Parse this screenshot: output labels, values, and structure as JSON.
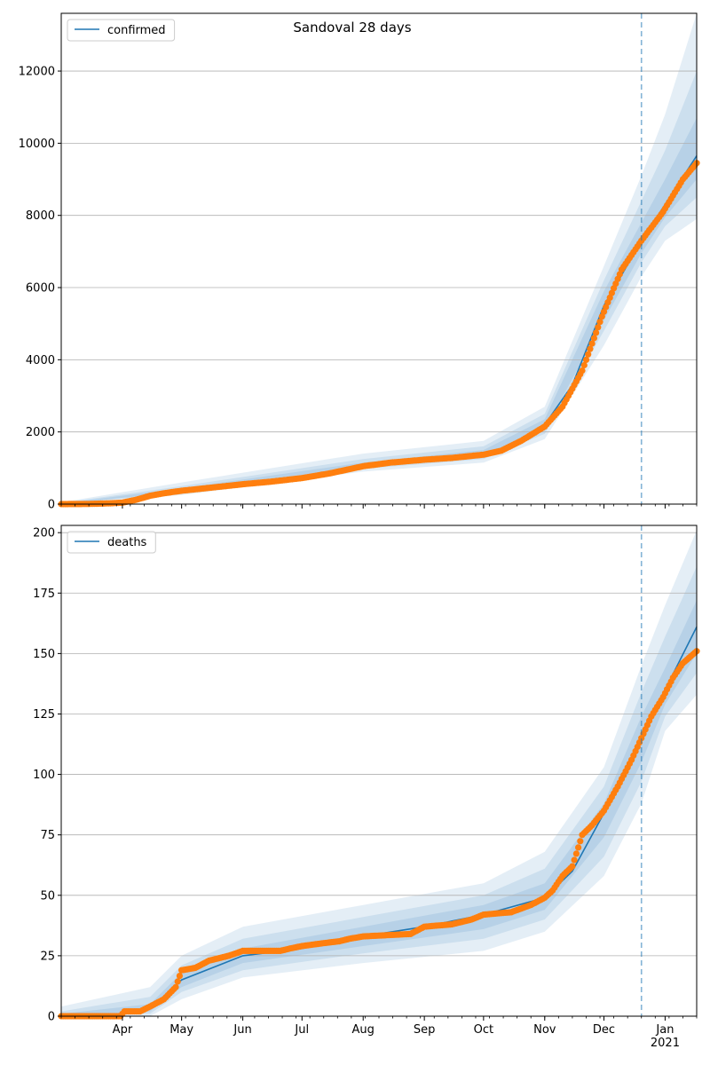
{
  "figure": {
    "title": "Sandoval 28 days"
  },
  "chart_data": [
    {
      "type": "line",
      "legend": {
        "label": "confirmed",
        "placement": "top-left"
      },
      "x_unit": "date",
      "x_range": [
        "2020-03-01",
        "2021-01-17"
      ],
      "ylim": [
        0,
        13600
      ],
      "yticks": [
        0,
        2000,
        4000,
        6000,
        8000,
        10000,
        12000
      ],
      "grid": "y",
      "vline_date": "2020-12-20",
      "colors": {
        "fit": "#1f77b4",
        "observed": "#ff7f0e",
        "band": "#1f77b4"
      },
      "observed": [
        [
          "2020-03-01",
          0
        ],
        [
          "2020-03-15",
          5
        ],
        [
          "2020-03-25",
          20
        ],
        [
          "2020-04-01",
          40
        ],
        [
          "2020-04-08",
          120
        ],
        [
          "2020-04-15",
          230
        ],
        [
          "2020-04-22",
          300
        ],
        [
          "2020-05-01",
          370
        ],
        [
          "2020-05-15",
          450
        ],
        [
          "2020-06-01",
          550
        ],
        [
          "2020-06-15",
          620
        ],
        [
          "2020-07-01",
          720
        ],
        [
          "2020-07-15",
          850
        ],
        [
          "2020-08-01",
          1050
        ],
        [
          "2020-08-15",
          1150
        ],
        [
          "2020-09-01",
          1230
        ],
        [
          "2020-09-15",
          1280
        ],
        [
          "2020-10-01",
          1370
        ],
        [
          "2020-10-10",
          1480
        ],
        [
          "2020-10-20",
          1750
        ],
        [
          "2020-11-01",
          2150
        ],
        [
          "2020-11-10",
          2700
        ],
        [
          "2020-11-20",
          3700
        ],
        [
          "2020-11-30",
          5200
        ],
        [
          "2020-12-10",
          6500
        ],
        [
          "2020-12-20",
          7300
        ],
        [
          "2020-12-31",
          8100
        ],
        [
          "2021-01-10",
          9000
        ],
        [
          "2021-01-17",
          9450
        ]
      ],
      "fit": [
        [
          "2020-03-01",
          0
        ],
        [
          "2020-04-01",
          40
        ],
        [
          "2020-05-01",
          380
        ],
        [
          "2020-06-01",
          560
        ],
        [
          "2020-07-01",
          730
        ],
        [
          "2020-08-01",
          1060
        ],
        [
          "2020-09-01",
          1240
        ],
        [
          "2020-10-01",
          1380
        ],
        [
          "2020-10-15",
          1600
        ],
        [
          "2020-11-01",
          2200
        ],
        [
          "2020-11-15",
          3300
        ],
        [
          "2020-12-01",
          5500
        ],
        [
          "2020-12-20",
          7300
        ],
        [
          "2021-01-01",
          8300
        ],
        [
          "2021-01-17",
          9650
        ]
      ],
      "bands": [
        {
          "lower": [
            [
              "2020-03-01",
              0
            ],
            [
              "2020-05-01",
              250
            ],
            [
              "2020-08-01",
              900
            ],
            [
              "2020-10-01",
              1150
            ],
            [
              "2020-11-01",
              1800
            ],
            [
              "2020-12-01",
              4400
            ],
            [
              "2020-12-20",
              6300
            ],
            [
              "2021-01-01",
              7300
            ],
            [
              "2021-01-17",
              7900
            ]
          ],
          "upper": [
            [
              "2020-03-01",
              50
            ],
            [
              "2020-05-01",
              600
            ],
            [
              "2020-08-01",
              1400
            ],
            [
              "2020-10-01",
              1750
            ],
            [
              "2020-11-01",
              2700
            ],
            [
              "2020-12-01",
              6600
            ],
            [
              "2020-12-20",
              9100
            ],
            [
              "2021-01-01",
              10800
            ],
            [
              "2021-01-17",
              13600
            ]
          ]
        },
        {
          "lower": [
            [
              "2020-03-01",
              0
            ],
            [
              "2020-05-01",
              300
            ],
            [
              "2020-08-01",
              980
            ],
            [
              "2020-10-01",
              1250
            ],
            [
              "2020-11-01",
              1950
            ],
            [
              "2020-12-01",
              4800
            ],
            [
              "2020-12-20",
              6700
            ],
            [
              "2021-01-01",
              7700
            ],
            [
              "2021-01-17",
              8500
            ]
          ],
          "upper": [
            [
              "2020-03-01",
              30
            ],
            [
              "2020-05-01",
              500
            ],
            [
              "2020-08-01",
              1250
            ],
            [
              "2020-10-01",
              1600
            ],
            [
              "2020-11-01",
              2500
            ],
            [
              "2020-12-01",
              6200
            ],
            [
              "2020-12-20",
              8400
            ],
            [
              "2021-01-01",
              9800
            ],
            [
              "2021-01-17",
              12000
            ]
          ]
        },
        {
          "lower": [
            [
              "2020-03-01",
              0
            ],
            [
              "2020-05-01",
              340
            ],
            [
              "2020-08-01",
              1020
            ],
            [
              "2020-10-01",
              1310
            ],
            [
              "2020-11-01",
              2050
            ],
            [
              "2020-12-01",
              5100
            ],
            [
              "2020-12-20",
              6950
            ],
            [
              "2021-01-01",
              7950
            ],
            [
              "2021-01-17",
              9000
            ]
          ],
          "upper": [
            [
              "2020-03-01",
              15
            ],
            [
              "2020-05-01",
              440
            ],
            [
              "2020-08-01",
              1150
            ],
            [
              "2020-10-01",
              1500
            ],
            [
              "2020-11-01",
              2350
            ],
            [
              "2020-12-01",
              5900
            ],
            [
              "2020-12-20",
              7800
            ],
            [
              "2021-01-01",
              9000
            ],
            [
              "2021-01-17",
              10700
            ]
          ]
        }
      ]
    },
    {
      "type": "line",
      "legend": {
        "label": "deaths",
        "placement": "top-left"
      },
      "x_unit": "date",
      "x_range": [
        "2020-03-01",
        "2021-01-17"
      ],
      "ylim": [
        0,
        203
      ],
      "yticks": [
        0,
        25,
        50,
        75,
        100,
        125,
        150,
        175,
        200
      ],
      "grid": "y",
      "vline_date": "2020-12-20",
      "colors": {
        "fit": "#1f77b4",
        "observed": "#ff7f0e",
        "band": "#1f77b4"
      },
      "observed": [
        [
          "2020-03-01",
          0
        ],
        [
          "2020-03-31",
          0
        ],
        [
          "2020-04-02",
          2
        ],
        [
          "2020-04-10",
          2
        ],
        [
          "2020-04-15",
          4
        ],
        [
          "2020-04-22",
          7
        ],
        [
          "2020-04-28",
          12
        ],
        [
          "2020-05-01",
          19
        ],
        [
          "2020-05-08",
          20
        ],
        [
          "2020-05-15",
          23
        ],
        [
          "2020-05-25",
          25
        ],
        [
          "2020-06-01",
          27
        ],
        [
          "2020-06-20",
          27
        ],
        [
          "2020-06-25",
          28
        ],
        [
          "2020-07-01",
          29
        ],
        [
          "2020-07-10",
          30
        ],
        [
          "2020-07-20",
          31
        ],
        [
          "2020-07-25",
          32
        ],
        [
          "2020-08-01",
          33
        ],
        [
          "2020-08-25",
          34
        ],
        [
          "2020-09-01",
          37
        ],
        [
          "2020-09-15",
          38
        ],
        [
          "2020-09-25",
          40
        ],
        [
          "2020-10-01",
          42
        ],
        [
          "2020-10-15",
          43
        ],
        [
          "2020-10-25",
          46
        ],
        [
          "2020-11-01",
          49
        ],
        [
          "2020-11-05",
          52
        ],
        [
          "2020-11-10",
          58
        ],
        [
          "2020-11-15",
          62
        ],
        [
          "2020-11-20",
          75
        ],
        [
          "2020-11-25",
          79
        ],
        [
          "2020-12-01",
          85
        ],
        [
          "2020-12-08",
          95
        ],
        [
          "2020-12-15",
          106
        ],
        [
          "2020-12-20",
          115
        ],
        [
          "2020-12-25",
          124
        ],
        [
          "2020-12-31",
          132
        ],
        [
          "2021-01-05",
          140
        ],
        [
          "2021-01-10",
          146
        ],
        [
          "2021-01-17",
          151
        ]
      ],
      "fit": [
        [
          "2020-03-01",
          0
        ],
        [
          "2020-04-01",
          1
        ],
        [
          "2020-04-15",
          3
        ],
        [
          "2020-05-01",
          15
        ],
        [
          "2020-06-01",
          25
        ],
        [
          "2020-07-01",
          28
        ],
        [
          "2020-08-01",
          33
        ],
        [
          "2020-09-01",
          37
        ],
        [
          "2020-10-01",
          42
        ],
        [
          "2020-11-01",
          49
        ],
        [
          "2020-11-15",
          60
        ],
        [
          "2020-12-01",
          84
        ],
        [
          "2020-12-20",
          115
        ],
        [
          "2021-01-01",
          135
        ],
        [
          "2021-01-17",
          161
        ]
      ],
      "bands": [
        {
          "lower": [
            [
              "2020-03-01",
              0
            ],
            [
              "2020-04-15",
              0
            ],
            [
              "2020-05-01",
              7
            ],
            [
              "2020-06-01",
              16
            ],
            [
              "2020-08-01",
              22
            ],
            [
              "2020-10-01",
              27
            ],
            [
              "2020-11-01",
              35
            ],
            [
              "2020-12-01",
              58
            ],
            [
              "2020-12-20",
              88
            ],
            [
              "2021-01-01",
              118
            ],
            [
              "2021-01-17",
              133
            ]
          ],
          "upper": [
            [
              "2020-03-01",
              4
            ],
            [
              "2020-04-15",
              12
            ],
            [
              "2020-05-01",
              25
            ],
            [
              "2020-06-01",
              37
            ],
            [
              "2020-08-01",
              46
            ],
            [
              "2020-10-01",
              55
            ],
            [
              "2020-11-01",
              68
            ],
            [
              "2020-12-01",
              103
            ],
            [
              "2020-12-20",
              145
            ],
            [
              "2021-01-01",
              170
            ],
            [
              "2021-01-17",
              201
            ]
          ]
        },
        {
          "lower": [
            [
              "2020-03-01",
              0
            ],
            [
              "2020-04-15",
              1
            ],
            [
              "2020-05-01",
              10
            ],
            [
              "2020-06-01",
              19
            ],
            [
              "2020-08-01",
              26
            ],
            [
              "2020-10-01",
              32
            ],
            [
              "2020-11-01",
              40
            ],
            [
              "2020-12-01",
              66
            ],
            [
              "2020-12-20",
              97
            ],
            [
              "2021-01-01",
              124
            ],
            [
              "2021-01-17",
              142
            ]
          ],
          "upper": [
            [
              "2020-03-01",
              2
            ],
            [
              "2020-04-15",
              8
            ],
            [
              "2020-05-01",
              21
            ],
            [
              "2020-06-01",
              32
            ],
            [
              "2020-08-01",
              41
            ],
            [
              "2020-10-01",
              50
            ],
            [
              "2020-11-01",
              61
            ],
            [
              "2020-12-01",
              95
            ],
            [
              "2020-12-20",
              134
            ],
            [
              "2021-01-01",
              157
            ],
            [
              "2021-01-17",
              186
            ]
          ]
        },
        {
          "lower": [
            [
              "2020-03-01",
              0
            ],
            [
              "2020-04-15",
              2
            ],
            [
              "2020-05-01",
              12
            ],
            [
              "2020-06-01",
              22
            ],
            [
              "2020-08-01",
              29
            ],
            [
              "2020-10-01",
              36
            ],
            [
              "2020-11-01",
              44
            ],
            [
              "2020-12-01",
              74
            ],
            [
              "2020-12-20",
              105
            ],
            [
              "2021-01-01",
              129
            ],
            [
              "2021-01-17",
              150
            ]
          ],
          "upper": [
            [
              "2020-03-01",
              1
            ],
            [
              "2020-04-15",
              5
            ],
            [
              "2020-05-01",
              18
            ],
            [
              "2020-06-01",
              28
            ],
            [
              "2020-08-01",
              37
            ],
            [
              "2020-10-01",
              46
            ],
            [
              "2020-11-01",
              55
            ],
            [
              "2020-12-01",
              88
            ],
            [
              "2020-12-20",
              124
            ],
            [
              "2021-01-01",
              144
            ],
            [
              "2021-01-17",
              172
            ]
          ]
        }
      ]
    }
  ],
  "x_axis": {
    "month_ticks": [
      {
        "label": "Apr",
        "date": "2020-04-01"
      },
      {
        "label": "May",
        "date": "2020-05-01"
      },
      {
        "label": "Jun",
        "date": "2020-06-01"
      },
      {
        "label": "Jul",
        "date": "2020-07-01"
      },
      {
        "label": "Aug",
        "date": "2020-08-01"
      },
      {
        "label": "Sep",
        "date": "2020-09-01"
      },
      {
        "label": "Oct",
        "date": "2020-10-01"
      },
      {
        "label": "Nov",
        "date": "2020-11-01"
      },
      {
        "label": "Dec",
        "date": "2020-12-01"
      },
      {
        "label": "Jan",
        "date": "2021-01-01"
      }
    ],
    "year_label": "2021"
  }
}
